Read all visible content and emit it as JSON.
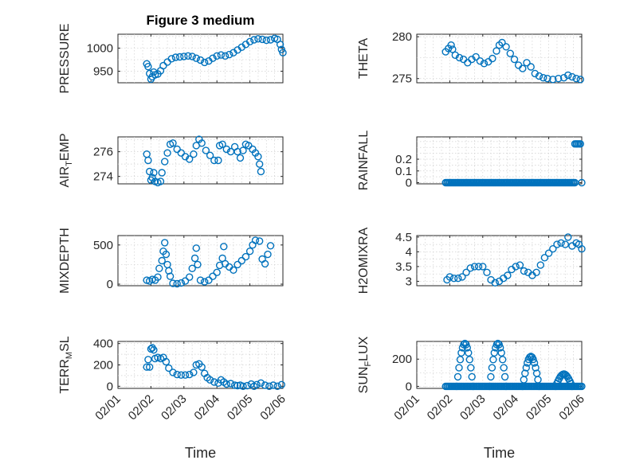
{
  "chart_data": [
    {
      "type": "scatter",
      "title": "Figure 3 medium",
      "ylabel": "PRESSURE",
      "ylim": [
        925,
        1030
      ],
      "yticks": [
        950,
        1000
      ],
      "xlim": [
        "02/01",
        "02/06"
      ],
      "color": "#0072BD",
      "grid": "on",
      "points": [
        [
          "02/01 21:00",
          966
        ],
        [
          "02/01 22:00",
          960
        ],
        [
          "02/01 23:00",
          945
        ],
        [
          "02/02 00:00",
          933
        ],
        [
          "02/02 01:00",
          938
        ],
        [
          "02/02 02:00",
          948
        ],
        [
          "02/02 03:00",
          942
        ],
        [
          "02/02 05:00",
          944
        ],
        [
          "02/02 07:00",
          951
        ],
        [
          "02/02 09:00",
          962
        ],
        [
          "02/02 12:00",
          970
        ],
        [
          "02/02 15:00",
          977
        ],
        [
          "02/02 18:00",
          980
        ],
        [
          "02/02 21:00",
          981
        ],
        [
          "02/03 00:00",
          982
        ],
        [
          "02/03 03:00",
          983
        ],
        [
          "02/03 06:00",
          982
        ],
        [
          "02/03 09:00",
          978
        ],
        [
          "02/03 12:00",
          974
        ],
        [
          "02/03 15:00",
          969
        ],
        [
          "02/03 18:00",
          972
        ],
        [
          "02/03 21:00",
          978
        ],
        [
          "02/04 00:00",
          983
        ],
        [
          "02/04 03:00",
          985
        ],
        [
          "02/04 06:00",
          983
        ],
        [
          "02/04 09:00",
          986
        ],
        [
          "02/04 12:00",
          990
        ],
        [
          "02/04 15:00",
          996
        ],
        [
          "02/04 18:00",
          1002
        ],
        [
          "02/04 21:00",
          1008
        ],
        [
          "02/05 00:00",
          1014
        ],
        [
          "02/05 03:00",
          1018
        ],
        [
          "02/05 06:00",
          1020
        ],
        [
          "02/05 09:00",
          1019
        ],
        [
          "02/05 12:00",
          1017
        ],
        [
          "02/05 15:00",
          1018
        ],
        [
          "02/05 18:00",
          1021
        ],
        [
          "02/05 20:00",
          1019
        ],
        [
          "02/05 22:00",
          1008
        ],
        [
          "02/05 23:00",
          997
        ],
        [
          "02/06 00:00",
          990
        ]
      ]
    },
    {
      "type": "scatter",
      "ylabel": "THETA",
      "ylim": [
        274.5,
        280.3
      ],
      "yticks": [
        275,
        280
      ],
      "xlim": [
        "02/01",
        "02/06"
      ],
      "color": "#0072BD",
      "grid": "on",
      "points": [
        [
          "02/01 21:00",
          278.2
        ],
        [
          "02/01 23:00",
          278.6
        ],
        [
          "02/02 01:00",
          279.0
        ],
        [
          "02/02 02:00",
          278.5
        ],
        [
          "02/02 04:00",
          277.8
        ],
        [
          "02/02 07:00",
          277.5
        ],
        [
          "02/02 10:00",
          277.3
        ],
        [
          "02/02 13:00",
          276.9
        ],
        [
          "02/02 16:00",
          277.3
        ],
        [
          "02/02 19:00",
          277.6
        ],
        [
          "02/02 22:00",
          277.1
        ],
        [
          "02/03 01:00",
          276.8
        ],
        [
          "02/03 04:00",
          277.0
        ],
        [
          "02/03 07:00",
          277.4
        ],
        [
          "02/03 10:00",
          278.3
        ],
        [
          "02/03 12:00",
          279.0
        ],
        [
          "02/03 14:00",
          279.3
        ],
        [
          "02/03 17:00",
          278.8
        ],
        [
          "02/03 20:00",
          278.0
        ],
        [
          "02/03 23:00",
          277.3
        ],
        [
          "02/04 02:00",
          276.6
        ],
        [
          "02/04 05:00",
          276.2
        ],
        [
          "02/04 08:00",
          276.9
        ],
        [
          "02/04 11:00",
          276.4
        ],
        [
          "02/04 14:00",
          275.6
        ],
        [
          "02/04 17:00",
          275.3
        ],
        [
          "02/04 20:00",
          275.1
        ],
        [
          "02/04 23:00",
          275.0
        ],
        [
          "02/05 03:00",
          274.9
        ],
        [
          "02/05 07:00",
          275.0
        ],
        [
          "02/05 11:00",
          275.1
        ],
        [
          "02/05 14:00",
          275.4
        ],
        [
          "02/05 17:00",
          275.2
        ],
        [
          "02/05 20:00",
          275.0
        ],
        [
          "02/05 23:00",
          274.9
        ]
      ]
    },
    {
      "type": "scatter",
      "ylabel": "AIR_TEMP",
      "ylabel_parts": [
        "AIR",
        "T",
        "EMP"
      ],
      "ylim": [
        273.4,
        277.2
      ],
      "yticks": [
        274,
        276
      ],
      "xlim": [
        "02/01",
        "02/06"
      ],
      "color": "#0072BD",
      "grid": "on",
      "points": [
        [
          "02/01 21:00",
          275.8
        ],
        [
          "02/01 22:00",
          275.3
        ],
        [
          "02/01 23:00",
          274.4
        ],
        [
          "02/02 00:00",
          273.7
        ],
        [
          "02/02 01:00",
          273.9
        ],
        [
          "02/02 02:00",
          274.3
        ],
        [
          "02/02 03:00",
          273.6
        ],
        [
          "02/02 05:00",
          273.5
        ],
        [
          "02/02 07:00",
          273.6
        ],
        [
          "02/02 08:00",
          274.3
        ],
        [
          "02/02 10:00",
          275.2
        ],
        [
          "02/02 12:00",
          275.9
        ],
        [
          "02/02 14:00",
          276.6
        ],
        [
          "02/02 16:00",
          276.7
        ],
        [
          "02/02 19:00",
          276.2
        ],
        [
          "02/02 22:00",
          275.9
        ],
        [
          "02/03 01:00",
          275.6
        ],
        [
          "02/03 04:00",
          275.4
        ],
        [
          "02/03 07:00",
          275.8
        ],
        [
          "02/03 09:00",
          276.5
        ],
        [
          "02/03 11:00",
          277.0
        ],
        [
          "02/03 13:00",
          276.7
        ],
        [
          "02/03 16:00",
          276.1
        ],
        [
          "02/03 19:00",
          275.7
        ],
        [
          "02/03 22:00",
          275.3
        ],
        [
          "02/04 01:00",
          275.3
        ],
        [
          "02/04 02:00",
          276.5
        ],
        [
          "02/04 04:00",
          276.6
        ],
        [
          "02/04 07:00",
          276.2
        ],
        [
          "02/04 10:00",
          276.0
        ],
        [
          "02/04 13:00",
          276.4
        ],
        [
          "02/04 15:00",
          276.0
        ],
        [
          "02/04 17:00",
          275.5
        ],
        [
          "02/04 19:00",
          276.1
        ],
        [
          "02/04 21:00",
          276.6
        ],
        [
          "02/04 23:00",
          276.5
        ],
        [
          "02/05 02:00",
          276.2
        ],
        [
          "02/05 04:00",
          275.9
        ],
        [
          "02/05 06:00",
          275.6
        ],
        [
          "02/05 07:00",
          275.0
        ],
        [
          "02/05 08:00",
          274.4
        ]
      ]
    },
    {
      "type": "scatter",
      "ylabel": "RAINFALL",
      "ylim": [
        -0.01,
        0.39
      ],
      "yticks": [
        0,
        0.1,
        0.2
      ],
      "ytick_labels": [
        "0",
        "0.1",
        "0.2"
      ],
      "xlim": [
        "02/01",
        "02/06"
      ],
      "color": "#0072BD",
      "grid": "on",
      "series_segments": [
        {
          "from": "02/01 21:00",
          "to": "02/05 19:00",
          "value": 0,
          "step_hours": 1
        },
        {
          "from": "02/05 19:00",
          "to": "02/05 23:00",
          "value": 0.33,
          "step_hours": 1
        }
      ],
      "points": [
        [
          "02/06 00:00",
          0
        ]
      ]
    },
    {
      "type": "scatter",
      "ylabel": "MIXDEPTH",
      "ylim": [
        -20,
        620
      ],
      "yticks": [
        0,
        500
      ],
      "xlim": [
        "02/01",
        "02/06"
      ],
      "color": "#0072BD",
      "grid": "on",
      "points": [
        [
          "02/01 21:00",
          50
        ],
        [
          "02/01 23:00",
          40
        ],
        [
          "02/02 01:00",
          60
        ],
        [
          "02/02 03:00",
          50
        ],
        [
          "02/02 05:00",
          90
        ],
        [
          "02/02 06:00",
          200
        ],
        [
          "02/02 08:00",
          300
        ],
        [
          "02/02 09:00",
          420
        ],
        [
          "02/02 10:00",
          530
        ],
        [
          "02/02 11:00",
          380
        ],
        [
          "02/02 12:00",
          250
        ],
        [
          "02/02 13:00",
          170
        ],
        [
          "02/02 14:00",
          100
        ],
        [
          "02/02 16:00",
          10
        ],
        [
          "02/02 19:00",
          5
        ],
        [
          "02/02 22:00",
          15
        ],
        [
          "02/03 01:00",
          40
        ],
        [
          "02/03 04:00",
          90
        ],
        [
          "02/03 06:00",
          200
        ],
        [
          "02/03 08:00",
          330
        ],
        [
          "02/03 09:00",
          460
        ],
        [
          "02/03 10:00",
          250
        ],
        [
          "02/03 12:00",
          50
        ],
        [
          "02/03 15:00",
          30
        ],
        [
          "02/03 18:00",
          50
        ],
        [
          "02/03 21:00",
          100
        ],
        [
          "02/04 00:00",
          150
        ],
        [
          "02/04 02:00",
          240
        ],
        [
          "02/04 04:00",
          330
        ],
        [
          "02/04 05:00",
          480
        ],
        [
          "02/04 06:00",
          260
        ],
        [
          "02/04 09:00",
          220
        ],
        [
          "02/04 12:00",
          180
        ],
        [
          "02/04 15:00",
          250
        ],
        [
          "02/04 18:00",
          300
        ],
        [
          "02/04 21:00",
          350
        ],
        [
          "02/05 00:00",
          420
        ],
        [
          "02/05 02:00",
          500
        ],
        [
          "02/05 04:00",
          560
        ],
        [
          "02/05 07:00",
          550
        ],
        [
          "02/05 09:00",
          320
        ],
        [
          "02/05 11:00",
          260
        ],
        [
          "02/05 13:00",
          380
        ],
        [
          "02/05 15:00",
          490
        ]
      ]
    },
    {
      "type": "scatter",
      "ylabel": "H2OMIXRA",
      "ylim": [
        2.85,
        4.55
      ],
      "yticks": [
        3,
        3.5,
        4,
        4.5
      ],
      "ytick_labels": [
        "3",
        "3.5",
        "4",
        "4.5"
      ],
      "xlim": [
        "02/01",
        "02/06"
      ],
      "color": "#0072BD",
      "grid": "on",
      "points": [
        [
          "02/01 22:00",
          3.05
        ],
        [
          "02/02 00:00",
          3.15
        ],
        [
          "02/02 03:00",
          3.1
        ],
        [
          "02/02 06:00",
          3.1
        ],
        [
          "02/02 09:00",
          3.15
        ],
        [
          "02/02 12:00",
          3.3
        ],
        [
          "02/02 15:00",
          3.45
        ],
        [
          "02/02 18:00",
          3.5
        ],
        [
          "02/02 21:00",
          3.5
        ],
        [
          "02/03 00:00",
          3.5
        ],
        [
          "02/03 03:00",
          3.3
        ],
        [
          "02/03 06:00",
          3.05
        ],
        [
          "02/03 09:00",
          2.95
        ],
        [
          "02/03 12:00",
          3.0
        ],
        [
          "02/03 15:00",
          3.1
        ],
        [
          "02/03 18:00",
          3.2
        ],
        [
          "02/03 21:00",
          3.4
        ],
        [
          "02/04 00:00",
          3.5
        ],
        [
          "02/04 03:00",
          3.55
        ],
        [
          "02/04 06:00",
          3.35
        ],
        [
          "02/04 09:00",
          3.3
        ],
        [
          "02/04 12:00",
          3.2
        ],
        [
          "02/04 15:00",
          3.3
        ],
        [
          "02/04 18:00",
          3.55
        ],
        [
          "02/04 21:00",
          3.8
        ],
        [
          "02/05 00:00",
          3.95
        ],
        [
          "02/05 03:00",
          4.1
        ],
        [
          "02/05 06:00",
          4.25
        ],
        [
          "02/05 09:00",
          4.3
        ],
        [
          "02/05 12:00",
          4.25
        ],
        [
          "02/05 14:00",
          4.5
        ],
        [
          "02/05 17:00",
          4.2
        ],
        [
          "02/05 20:00",
          4.3
        ],
        [
          "02/05 22:00",
          4.25
        ],
        [
          "02/06 00:00",
          4.1
        ]
      ]
    },
    {
      "type": "scatter",
      "ylabel": "TERR_MSL",
      "ylabel_parts": [
        "TERR",
        "M",
        "SL"
      ],
      "ylim": [
        -20,
        420
      ],
      "yticks": [
        0,
        200,
        400
      ],
      "xlim": [
        "02/01",
        "02/06"
      ],
      "color": "#0072BD",
      "grid": "on",
      "points": [
        [
          "02/01 21:00",
          180
        ],
        [
          "02/01 22:00",
          250
        ],
        [
          "02/01 23:00",
          180
        ],
        [
          "02/02 00:00",
          350
        ],
        [
          "02/02 01:00",
          360
        ],
        [
          "02/02 02:00",
          340
        ],
        [
          "02/02 03:00",
          260
        ],
        [
          "02/02 05:00",
          270
        ],
        [
          "02/02 07:00",
          260
        ],
        [
          "02/02 09:00",
          270
        ],
        [
          "02/02 11:00",
          230
        ],
        [
          "02/02 13:00",
          170
        ],
        [
          "02/02 16:00",
          130
        ],
        [
          "02/02 19:00",
          110
        ],
        [
          "02/02 22:00",
          105
        ],
        [
          "02/03 01:00",
          105
        ],
        [
          "02/03 04:00",
          110
        ],
        [
          "02/03 07:00",
          130
        ],
        [
          "02/03 09:00",
          200
        ],
        [
          "02/03 11:00",
          210
        ],
        [
          "02/03 13:00",
          180
        ],
        [
          "02/03 15:00",
          120
        ],
        [
          "02/03 17:00",
          80
        ],
        [
          "02/03 19:00",
          60
        ],
        [
          "02/03 22:00",
          40
        ],
        [
          "02/04 01:00",
          30
        ],
        [
          "02/04 03:00",
          60
        ],
        [
          "02/04 05:00",
          40
        ],
        [
          "02/04 07:00",
          20
        ],
        [
          "02/04 10:00",
          25
        ],
        [
          "02/04 13:00",
          10
        ],
        [
          "02/04 15:00",
          5
        ],
        [
          "02/04 17:00",
          10
        ],
        [
          "02/04 19:00",
          0
        ],
        [
          "02/04 22:00",
          5
        ],
        [
          "02/05 01:00",
          20
        ],
        [
          "02/05 03:00",
          0
        ],
        [
          "02/05 05:00",
          15
        ],
        [
          "02/05 08:00",
          30
        ],
        [
          "02/05 11:00",
          10
        ],
        [
          "02/05 14:00",
          0
        ],
        [
          "02/05 17:00",
          10
        ],
        [
          "02/05 20:00",
          0
        ],
        [
          "02/05 23:00",
          15
        ]
      ]
    },
    {
      "type": "scatter",
      "ylabel": "SUN_FLUX",
      "ylabel_parts": [
        "SUN",
        "F",
        "LUX"
      ],
      "ylim": [
        -15,
        330
      ],
      "yticks": [
        0,
        200
      ],
      "xlim": [
        "02/01",
        "02/06"
      ],
      "color": "#0072BD",
      "grid": "on",
      "series_segments": [
        {
          "from": "02/01 21:00",
          "to": "02/06 00:00",
          "value": 0,
          "step_hours": 1
        }
      ],
      "peaks": [
        {
          "start": "02/02 05:00",
          "end": "02/02 17:00",
          "max": 315
        },
        {
          "start": "02/03 05:00",
          "end": "02/03 17:00",
          "max": 315
        },
        {
          "start": "02/04 05:00",
          "end": "02/04 17:00",
          "max": 220
        },
        {
          "start": "02/05 05:00",
          "end": "02/05 17:00",
          "max": 90
        }
      ]
    }
  ],
  "x_axis": {
    "tick_labels": [
      "02/01",
      "02/02",
      "02/03",
      "02/04",
      "02/05",
      "02/06"
    ],
    "label": "Time"
  }
}
